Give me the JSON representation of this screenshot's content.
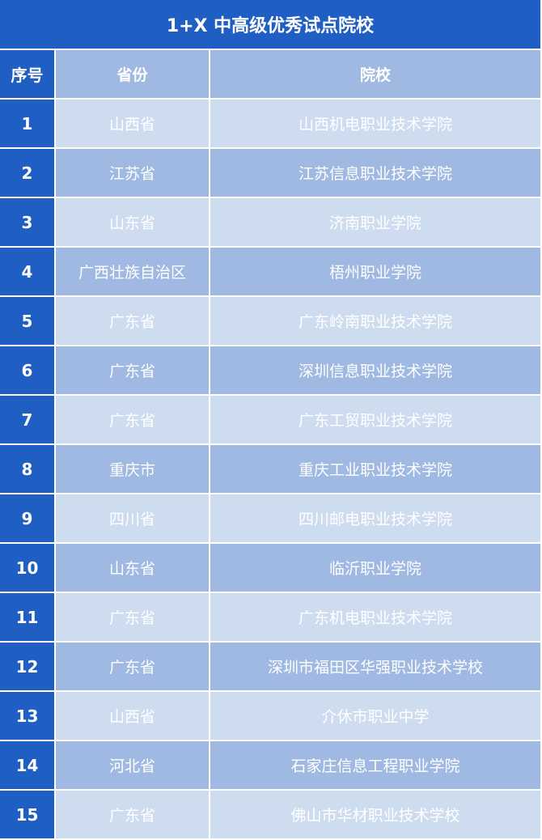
{
  "title": "1+X 中高级优秀试点院校",
  "colors": {
    "primary": "#1f5fc4",
    "row_dark": "#9fb9e2",
    "row_light": "#cedcf0",
    "text": "#ffffff"
  },
  "headers": [
    "序号",
    "省份",
    "院校"
  ],
  "rows": [
    [
      "1",
      "山西省",
      "山西机电职业技术学院"
    ],
    [
      "2",
      "江苏省",
      "江苏信息职业技术学院"
    ],
    [
      "3",
      "山东省",
      "济南职业学院"
    ],
    [
      "4",
      "广西壮族自治区",
      "梧州职业学院"
    ],
    [
      "5",
      "广东省",
      "广东岭南职业技术学院"
    ],
    [
      "6",
      "广东省",
      "深圳信息职业技术学院"
    ],
    [
      "7",
      "广东省",
      "广东工贸职业技术学院"
    ],
    [
      "8",
      "重庆市",
      "重庆工业职业技术学院"
    ],
    [
      "9",
      "四川省",
      "四川邮电职业技术学院"
    ],
    [
      "10",
      "山东省",
      "临沂职业学院"
    ],
    [
      "11",
      "广东省",
      "广东机电职业技术学院"
    ],
    [
      "12",
      "广东省",
      "深圳市福田区华强职业技术学校"
    ],
    [
      "13",
      "山西省",
      "介休市职业中学"
    ],
    [
      "14",
      "河北省",
      "石家庄信息工程职业学院"
    ],
    [
      "15",
      "广东省",
      "佛山市华材职业技术学校"
    ]
  ]
}
